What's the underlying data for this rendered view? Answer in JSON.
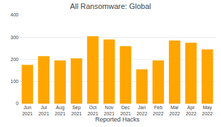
{
  "chart_data": {
    "type": "bar",
    "title": "All Ransomware: Global",
    "xlabel": "Reported Hacks",
    "categories": [
      "Jun\n2021",
      "Jul\n2021",
      "Aug\n2021",
      "Sep\n2021",
      "Oct\n2021",
      "Nov\n2021",
      "Dec\n2021",
      "Jan\n2022",
      "Feb\n2022",
      "Mar\n2022",
      "Apr\n2022",
      "May\n2022"
    ],
    "values": [
      175,
      215,
      195,
      205,
      305,
      290,
      260,
      155,
      195,
      285,
      275,
      245
    ],
    "color": "#FFA500",
    "ylim": [
      0,
      400
    ],
    "yticks": [
      0,
      100,
      200,
      300,
      400
    ],
    "grid": true
  }
}
